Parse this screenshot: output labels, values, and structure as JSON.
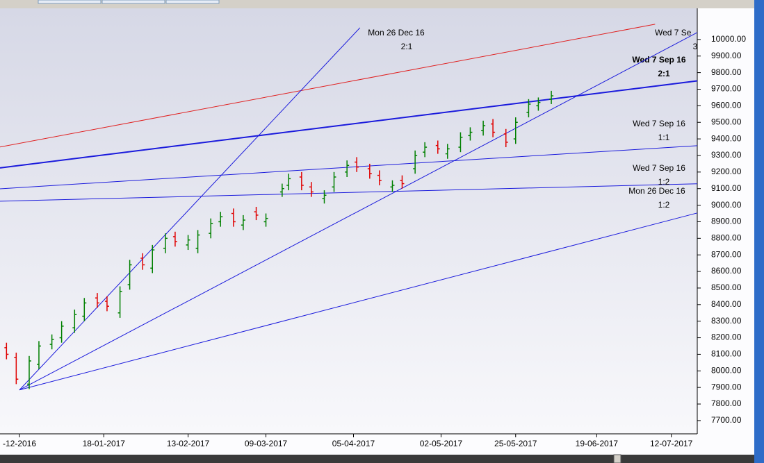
{
  "chart_data": {
    "type": "ohlc",
    "up_color": "#008000",
    "down_color": "#e00000",
    "x": [
      "2016-12-19",
      "2016-12-22",
      "2016-12-26",
      "2016-12-29",
      "2017-01-02",
      "2017-01-05",
      "2017-01-09",
      "2017-01-12",
      "2017-01-16",
      "2017-01-19",
      "2017-01-23",
      "2017-01-26",
      "2017-01-30",
      "2017-02-02",
      "2017-02-06",
      "2017-02-09",
      "2017-02-13",
      "2017-02-16",
      "2017-02-20",
      "2017-02-23",
      "2017-02-27",
      "2017-03-02",
      "2017-03-06",
      "2017-03-09",
      "2017-03-14",
      "2017-03-16",
      "2017-03-20",
      "2017-03-23",
      "2017-03-27",
      "2017-03-30",
      "2017-04-03",
      "2017-04-06",
      "2017-04-10",
      "2017-04-13",
      "2017-04-17",
      "2017-04-20",
      "2017-04-24",
      "2017-04-27",
      "2017-05-01",
      "2017-05-04",
      "2017-05-08",
      "2017-05-11",
      "2017-05-15",
      "2017-05-18",
      "2017-05-22",
      "2017-05-25",
      "2017-05-29",
      "2017-06-01",
      "2017-06-05"
    ],
    "open": [
      8140,
      8080,
      7920,
      8040,
      8160,
      8200,
      8260,
      8330,
      8440,
      8420,
      8350,
      8520,
      8680,
      8620,
      8740,
      8810,
      8760,
      8740,
      8830,
      8900,
      8950,
      8880,
      8960,
      8900,
      9080,
      9120,
      9170,
      9110,
      9040,
      9110,
      9200,
      9260,
      9220,
      9180,
      9110,
      9150,
      9220,
      9320,
      9360,
      9310,
      9350,
      9420,
      9450,
      9490,
      9430,
      9400,
      9560,
      9600,
      9640
    ],
    "high": [
      8170,
      8110,
      8090,
      8180,
      8220,
      8300,
      8370,
      8440,
      8470,
      8450,
      8510,
      8670,
      8710,
      8760,
      8830,
      8840,
      8820,
      8850,
      8920,
      8960,
      8980,
      8940,
      8990,
      8950,
      9130,
      9190,
      9200,
      9140,
      9090,
      9200,
      9270,
      9290,
      9250,
      9210,
      9150,
      9180,
      9330,
      9380,
      9390,
      9370,
      9440,
      9470,
      9510,
      9520,
      9460,
      9530,
      9640,
      9650,
      9690
    ],
    "low": [
      8070,
      7920,
      7890,
      8010,
      8130,
      8170,
      8230,
      8300,
      8380,
      8360,
      8320,
      8490,
      8610,
      8590,
      8710,
      8750,
      8730,
      8710,
      8800,
      8870,
      8870,
      8850,
      8910,
      8870,
      9050,
      9090,
      9090,
      9050,
      9010,
      9080,
      9170,
      9200,
      9160,
      9120,
      9080,
      9100,
      9190,
      9290,
      9310,
      9280,
      9320,
      9390,
      9420,
      9410,
      9350,
      9370,
      9530,
      9570,
      9610
    ],
    "close": [
      8100,
      7950,
      8060,
      8150,
      8190,
      8270,
      8340,
      8410,
      8410,
      8390,
      8480,
      8640,
      8640,
      8730,
      8800,
      8780,
      8790,
      8820,
      8890,
      8930,
      8900,
      8910,
      8940,
      8920,
      9100,
      9160,
      9120,
      9080,
      9060,
      9170,
      9240,
      9230,
      9190,
      9150,
      9120,
      9130,
      9300,
      9350,
      9340,
      9340,
      9410,
      9440,
      9480,
      9440,
      9380,
      9500,
      9610,
      9620,
      9660
    ],
    "xlim": [
      "2016-12-17",
      "2017-07-20"
    ],
    "xticks": [
      {
        "value": "2016-12-23",
        "label": "-12-2016"
      },
      {
        "value": "2017-01-18",
        "label": "18-01-2017"
      },
      {
        "value": "2017-02-13",
        "label": "13-02-2017"
      },
      {
        "value": "2017-03-09",
        "label": "09-03-2017"
      },
      {
        "value": "2017-04-05",
        "label": "05-04-2017"
      },
      {
        "value": "2017-05-02",
        "label": "02-05-2017"
      },
      {
        "value": "2017-05-25",
        "label": "25-05-2017"
      },
      {
        "value": "2017-06-19",
        "label": "19-06-2017"
      },
      {
        "value": "2017-07-12",
        "label": "12-07-2017"
      }
    ],
    "ylim": [
      7620,
      10188
    ],
    "yticks": [
      {
        "value": 7700,
        "label": "7700.00"
      },
      {
        "value": 7800,
        "label": "7800.00"
      },
      {
        "value": 7900,
        "label": "7900.00"
      },
      {
        "value": 8000,
        "label": "8000.00"
      },
      {
        "value": 8100,
        "label": "8100.00"
      },
      {
        "value": 8200,
        "label": "8200.00"
      },
      {
        "value": 8300,
        "label": "8300.00"
      },
      {
        "value": 8400,
        "label": "8400.00"
      },
      {
        "value": 8500,
        "label": "8500.00"
      },
      {
        "value": 8600,
        "label": "8600.00"
      },
      {
        "value": 8700,
        "label": "8700.00"
      },
      {
        "value": 8800,
        "label": "8800.00"
      },
      {
        "value": 8900,
        "label": "8900.00"
      },
      {
        "value": 9000,
        "label": "9000.00"
      },
      {
        "value": 9100,
        "label": "9100.00"
      },
      {
        "value": 9200,
        "label": "9200.00"
      },
      {
        "value": 9300,
        "label": "9300.00"
      },
      {
        "value": 9400,
        "label": "9400.00"
      },
      {
        "value": 9500,
        "label": "9500.00"
      },
      {
        "value": 9600,
        "label": "9600.00"
      },
      {
        "value": 9700,
        "label": "9700.00"
      },
      {
        "value": 9800,
        "label": "9800.00"
      },
      {
        "value": 9900,
        "label": "9900.00"
      },
      {
        "value": 10000,
        "label": "10000.00"
      }
    ],
    "lines": [
      {
        "x": [
          "2016-12-17",
          "2017-07-07"
        ],
        "y": [
          9351,
          10092
        ],
        "color": "#e02020",
        "label": [
          "Wed 7 Se",
          "3"
        ]
      },
      {
        "x": [
          "2016-12-17",
          "2017-07-20"
        ],
        "y": [
          9225,
          9750
        ],
        "color": "#1a1adc",
        "bold": true,
        "label": [
          "Wed 7 Sep 16",
          "2:1"
        ]
      },
      {
        "x": [
          "2016-12-17",
          "2017-07-20"
        ],
        "y": [
          9099,
          9359
        ],
        "color": "#1a1adc",
        "label": [
          "Wed 7 Sep 16",
          "1:1"
        ]
      },
      {
        "x": [
          "2016-12-17",
          "2017-07-20"
        ],
        "y": [
          9024,
          9129
        ],
        "color": "#1a1adc",
        "label": [
          "Wed 7 Sep 16",
          "1:2"
        ]
      },
      {
        "x": [
          "2016-12-23",
          "2017-04-07"
        ],
        "y": [
          7885,
          10071
        ],
        "color": "#1a1adc",
        "label": [
          "Mon 26 Dec 16",
          "2:1"
        ]
      },
      {
        "x": [
          "2016-12-23",
          "2017-07-20"
        ],
        "y": [
          7885,
          10042
        ],
        "color": "#1a1adc"
      },
      {
        "x": [
          "2016-12-23",
          "2017-07-20"
        ],
        "y": [
          7885,
          8953
        ],
        "color": "#1a1adc",
        "label": [
          "Mon 26 Dec 16",
          "1:2"
        ]
      }
    ]
  }
}
